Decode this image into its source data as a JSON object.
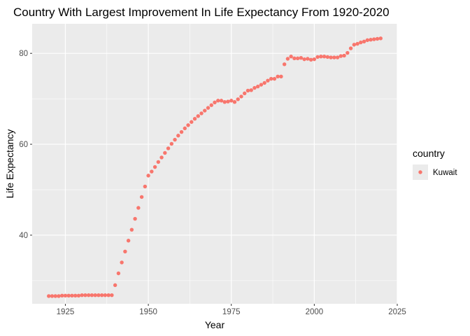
{
  "chart_data": {
    "type": "scatter",
    "title": "Country With Largest Improvement In Life Expectancy From 1920-2020",
    "xlabel": "Year",
    "ylabel": "Life Expectancy",
    "xlim": [
      1915,
      2025
    ],
    "ylim": [
      24.9,
      86.5
    ],
    "x_ticks": [
      1925,
      1950,
      1975,
      2000,
      2025
    ],
    "y_ticks": [
      40,
      60,
      80
    ],
    "grid": true,
    "legend": {
      "title": "country",
      "position": "right"
    },
    "colors": {
      "panel_background": "#ebebeb",
      "grid_major": "#ffffff",
      "point": "#f8766d",
      "legend_key_background": "#ebebeb"
    },
    "series": [
      {
        "name": "Kuwait",
        "x": [
          1920,
          1921,
          1922,
          1923,
          1924,
          1925,
          1926,
          1927,
          1928,
          1929,
          1930,
          1931,
          1932,
          1933,
          1934,
          1935,
          1936,
          1937,
          1938,
          1939,
          1940,
          1941,
          1942,
          1943,
          1944,
          1945,
          1946,
          1947,
          1948,
          1949,
          1950,
          1951,
          1952,
          1953,
          1954,
          1955,
          1956,
          1957,
          1958,
          1959,
          1960,
          1961,
          1962,
          1963,
          1964,
          1965,
          1966,
          1967,
          1968,
          1969,
          1970,
          1971,
          1972,
          1973,
          1974,
          1975,
          1976,
          1977,
          1978,
          1979,
          1980,
          1981,
          1982,
          1983,
          1984,
          1985,
          1986,
          1987,
          1988,
          1989,
          1990,
          1991,
          1992,
          1993,
          1994,
          1995,
          1996,
          1997,
          1998,
          1999,
          2000,
          2001,
          2002,
          2003,
          2004,
          2005,
          2006,
          2007,
          2008,
          2009,
          2010,
          2011,
          2012,
          2013,
          2014,
          2015,
          2016,
          2017,
          2018,
          2019,
          2020
        ],
        "y": [
          26.6,
          26.6,
          26.6,
          26.6,
          26.7,
          26.7,
          26.7,
          26.7,
          26.7,
          26.7,
          26.8,
          26.8,
          26.8,
          26.8,
          26.8,
          26.8,
          26.8,
          26.8,
          26.8,
          26.8,
          29.0,
          31.6,
          34.0,
          36.4,
          38.8,
          41.2,
          43.6,
          46.0,
          48.4,
          50.7,
          53.1,
          54.0,
          55.0,
          56.1,
          57.1,
          58.1,
          59.1,
          60.1,
          61.0,
          61.9,
          62.7,
          63.5,
          64.2,
          64.9,
          65.6,
          66.2,
          66.8,
          67.4,
          68.0,
          68.6,
          69.2,
          69.6,
          69.6,
          69.3,
          69.4,
          69.6,
          69.3,
          69.9,
          70.5,
          71.2,
          71.8,
          71.9,
          72.4,
          72.7,
          73.1,
          73.5,
          74.0,
          74.4,
          74.4,
          74.9,
          74.9,
          77.6,
          78.8,
          79.3,
          78.9,
          78.9,
          79.0,
          78.7,
          78.8,
          78.6,
          78.7,
          79.2,
          79.3,
          79.3,
          79.2,
          79.1,
          79.1,
          79.1,
          79.4,
          79.5,
          80.1,
          81.1,
          81.9,
          82.1,
          82.4,
          82.6,
          82.9,
          83.0,
          83.1,
          83.2,
          83.3
        ]
      }
    ]
  }
}
